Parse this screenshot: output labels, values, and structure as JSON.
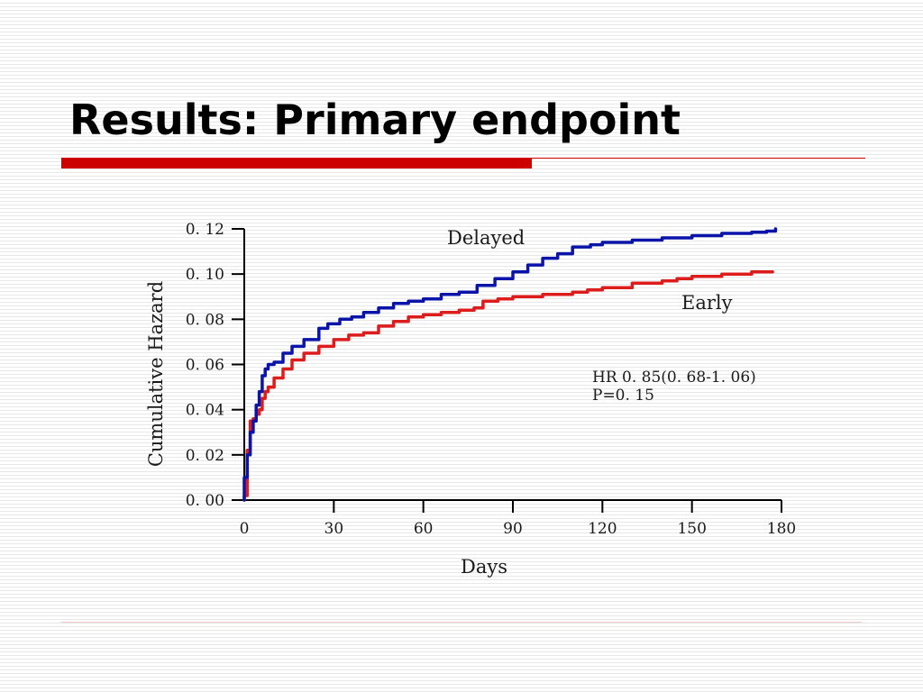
{
  "slide": {
    "title": "Results: Primary endpoint"
  },
  "colors": {
    "accent": "#cc0000",
    "delayed": "#0a14a8",
    "early": "#dd1c1c"
  },
  "chart_data": {
    "type": "line",
    "title": "",
    "xlabel": "Days",
    "ylabel": "Cumulative Hazard",
    "xlim": [
      0,
      180
    ],
    "ylim": [
      0,
      0.12
    ],
    "x_ticks": [
      "0",
      "30",
      "60",
      "90",
      "120",
      "150",
      "180"
    ],
    "y_ticks": [
      "0. 00",
      "0. 02",
      "0. 04",
      "0. 06",
      "0. 08",
      "0. 10",
      "0. 12"
    ],
    "grid": false,
    "legend": "none",
    "series": [
      {
        "name": "Delayed",
        "x": [
          0,
          1,
          2,
          3,
          4,
          5,
          6,
          7,
          8,
          10,
          13,
          16,
          20,
          25,
          28,
          32,
          36,
          40,
          45,
          50,
          55,
          60,
          66,
          72,
          78,
          84,
          90,
          95,
          100,
          105,
          110,
          116,
          120,
          130,
          140,
          150,
          160,
          170,
          175,
          178
        ],
        "y": [
          0.01,
          0.02,
          0.03,
          0.035,
          0.042,
          0.048,
          0.055,
          0.058,
          0.06,
          0.061,
          0.065,
          0.068,
          0.071,
          0.076,
          0.078,
          0.08,
          0.081,
          0.083,
          0.085,
          0.087,
          0.088,
          0.089,
          0.091,
          0.092,
          0.095,
          0.098,
          0.101,
          0.104,
          0.107,
          0.109,
          0.112,
          0.113,
          0.114,
          0.115,
          0.116,
          0.117,
          0.118,
          0.1185,
          0.119,
          0.12
        ]
      },
      {
        "name": "Early",
        "x": [
          0,
          1,
          2,
          3,
          4,
          5,
          6,
          7,
          8,
          10,
          13,
          16,
          20,
          25,
          30,
          35,
          40,
          45,
          50,
          55,
          60,
          66,
          72,
          77,
          80,
          85,
          90,
          100,
          110,
          115,
          120,
          130,
          140,
          145,
          150,
          160,
          170,
          177
        ],
        "y": [
          0.002,
          0.022,
          0.035,
          0.036,
          0.038,
          0.04,
          0.045,
          0.048,
          0.05,
          0.054,
          0.058,
          0.062,
          0.065,
          0.068,
          0.071,
          0.073,
          0.074,
          0.077,
          0.079,
          0.081,
          0.082,
          0.083,
          0.084,
          0.085,
          0.088,
          0.089,
          0.09,
          0.091,
          0.092,
          0.093,
          0.094,
          0.096,
          0.097,
          0.098,
          0.099,
          0.1,
          0.101,
          0.101
        ]
      }
    ],
    "annotations": {
      "delayed_label": "Delayed",
      "early_label": "Early",
      "hr_text": "HR 0. 85(0. 68-1. 06)",
      "p_text": "P=0. 15"
    }
  }
}
